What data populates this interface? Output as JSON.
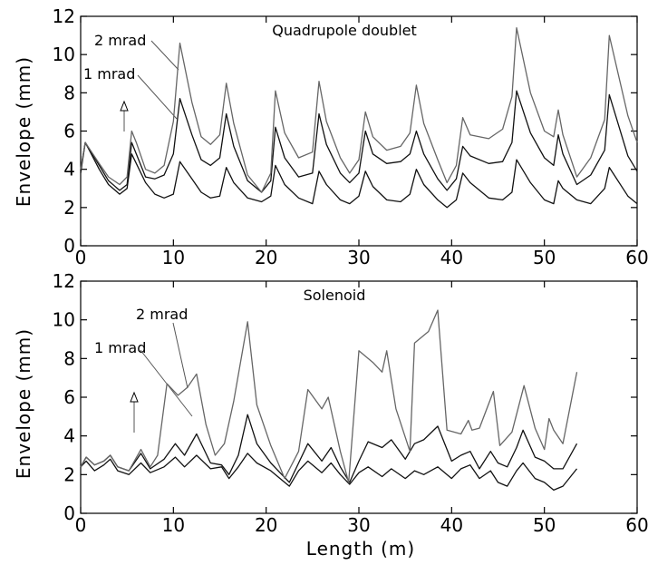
{
  "colors": {
    "dark": "#111111",
    "light": "#666666",
    "axis": "#000000"
  },
  "chart_data": [
    {
      "type": "line",
      "title": "Quadrupole doublet",
      "xlabel": "",
      "ylabel": "Envelope  (mm)",
      "xlim": [
        0,
        60
      ],
      "ylim": [
        0,
        12
      ],
      "xticks": [
        0,
        10,
        20,
        30,
        40,
        50,
        60
      ],
      "yticks": [
        0,
        2,
        4,
        6,
        8,
        10,
        12
      ],
      "grid": false,
      "annotations": [
        {
          "text": "2 mrad",
          "series": 2
        },
        {
          "text": "1 mrad",
          "series": 1
        }
      ],
      "series": [
        {
          "color": "#111111",
          "x": [
            0,
            0.5,
            2,
            3,
            4.2,
            5,
            5.5,
            6,
            7,
            8,
            9,
            10,
            10.7,
            12,
            13,
            14,
            15,
            15.7,
            16.5,
            18,
            19.5,
            20.5,
            21,
            22,
            23.5,
            25,
            25.7,
            26.5,
            28,
            29,
            30,
            30.7,
            31.5,
            33,
            34.5,
            35.5,
            36.2,
            37,
            38.5,
            39.5,
            40.5,
            41.2,
            42,
            44,
            45.5,
            46.5,
            47,
            48.5,
            50,
            51,
            51.5,
            52,
            53.5,
            55,
            56.5,
            57,
            59,
            60
          ],
          "y": [
            3.8,
            5.4,
            4.0,
            3.2,
            2.7,
            3.0,
            4.8,
            4.3,
            3.3,
            2.7,
            2.5,
            2.7,
            4.4,
            3.5,
            2.8,
            2.5,
            2.6,
            4.1,
            3.3,
            2.5,
            2.3,
            2.6,
            4.2,
            3.2,
            2.5,
            2.2,
            3.9,
            3.2,
            2.4,
            2.2,
            2.6,
            3.9,
            3.1,
            2.4,
            2.3,
            2.7,
            4.0,
            3.2,
            2.4,
            2.0,
            2.4,
            3.8,
            3.3,
            2.5,
            2.4,
            2.8,
            4.5,
            3.3,
            2.4,
            2.2,
            3.4,
            3.0,
            2.4,
            2.2,
            3.0,
            4.1,
            2.6,
            2.2
          ]
        },
        {
          "color": "#111111",
          "x": [
            0,
            0.5,
            2,
            3,
            4.2,
            5,
            5.5,
            6,
            7,
            8,
            9,
            10,
            10.7,
            12,
            13,
            14,
            15,
            15.7,
            16.5,
            18,
            19.5,
            20.5,
            21,
            22,
            23.5,
            25,
            25.7,
            26.5,
            28,
            29,
            30,
            30.7,
            31.5,
            33,
            34.5,
            35.5,
            36.2,
            37,
            38.5,
            39.5,
            40.5,
            41.2,
            42,
            44,
            45.5,
            46.5,
            47,
            48.5,
            50,
            51,
            51.5,
            52,
            53.5,
            55,
            56.5,
            57,
            59,
            60
          ],
          "y": [
            4.0,
            5.4,
            4.2,
            3.4,
            2.9,
            3.2,
            5.4,
            4.8,
            3.6,
            3.5,
            3.7,
            4.8,
            7.7,
            5.8,
            4.5,
            4.2,
            4.6,
            6.9,
            5.2,
            3.4,
            2.8,
            3.4,
            6.2,
            4.6,
            3.6,
            3.8,
            6.9,
            5.3,
            3.8,
            3.3,
            3.8,
            6.0,
            4.8,
            4.3,
            4.4,
            4.8,
            6.0,
            4.8,
            3.5,
            2.9,
            3.5,
            5.2,
            4.7,
            4.3,
            4.4,
            5.4,
            8.1,
            5.9,
            4.6,
            4.2,
            5.8,
            4.8,
            3.2,
            3.7,
            5.0,
            7.9,
            4.7,
            3.9
          ]
        },
        {
          "color": "#666666",
          "x": [
            0,
            0.5,
            2,
            3,
            4.2,
            5,
            5.5,
            6,
            7,
            8,
            9,
            10,
            10.7,
            12,
            13,
            14,
            15,
            15.7,
            16.5,
            18,
            19.5,
            20.5,
            21,
            22,
            23.5,
            25,
            25.7,
            26.5,
            28,
            29,
            30,
            30.7,
            31.5,
            33,
            34.5,
            35.5,
            36.2,
            37,
            38.5,
            39.5,
            40.5,
            41.2,
            42,
            44,
            45.5,
            46.5,
            47,
            48.5,
            50,
            51,
            51.5,
            52,
            53.5,
            55,
            56.5,
            57,
            59,
            60
          ],
          "y": [
            4.0,
            5.4,
            4.3,
            3.6,
            3.2,
            3.6,
            6.0,
            5.4,
            4.0,
            3.8,
            4.2,
            6.5,
            10.6,
            7.5,
            5.7,
            5.3,
            5.8,
            8.5,
            6.4,
            3.7,
            2.8,
            3.8,
            8.1,
            5.9,
            4.6,
            4.9,
            8.6,
            6.5,
            4.6,
            3.8,
            4.5,
            7.0,
            5.7,
            5.0,
            5.2,
            5.9,
            8.4,
            6.4,
            4.5,
            3.3,
            4.2,
            6.7,
            5.8,
            5.6,
            6.1,
            7.8,
            11.4,
            8.0,
            6.0,
            5.7,
            7.1,
            5.8,
            3.6,
            4.6,
            6.6,
            11.0,
            6.8,
            5.4
          ]
        }
      ]
    },
    {
      "type": "line",
      "title": "Solenoid",
      "xlabel": "Length  (m)",
      "ylabel": "Envelope  (mm)",
      "xlim": [
        0,
        60
      ],
      "ylim": [
        0,
        12
      ],
      "xticks": [
        0,
        10,
        20,
        30,
        40,
        50,
        60
      ],
      "yticks": [
        0,
        2,
        4,
        6,
        8,
        10,
        12
      ],
      "grid": false,
      "annotations": [
        {
          "text": "2 mrad",
          "series": 2
        },
        {
          "text": "1 mrad",
          "series": 1
        }
      ],
      "series": [
        {
          "color": "#111111",
          "x": [
            0,
            0.6,
            1.5,
            2.5,
            3.2,
            4,
            5.2,
            6.5,
            7.5,
            9,
            10.2,
            11.2,
            12.5,
            14,
            15.2,
            16,
            17,
            18,
            19,
            20.5,
            21.5,
            22.5,
            23.5,
            24.5,
            26,
            27,
            28,
            29,
            30,
            31,
            32.5,
            33.5,
            35,
            36,
            37,
            38.5,
            40,
            41,
            42,
            43,
            44.2,
            45,
            46,
            47,
            47.7,
            49,
            50,
            51,
            52,
            53.5
          ],
          "y": [
            2.4,
            2.7,
            2.2,
            2.5,
            2.8,
            2.2,
            2.0,
            2.6,
            2.1,
            2.4,
            2.9,
            2.4,
            3.0,
            2.3,
            2.4,
            1.8,
            2.4,
            3.1,
            2.6,
            2.2,
            1.8,
            1.4,
            2.2,
            2.7,
            2.1,
            2.6,
            2.0,
            1.5,
            2.1,
            2.4,
            1.9,
            2.3,
            1.8,
            2.2,
            2.0,
            2.4,
            1.8,
            2.3,
            2.5,
            1.8,
            2.2,
            1.6,
            1.4,
            2.2,
            2.6,
            1.8,
            1.6,
            1.2,
            1.4,
            2.3
          ]
        },
        {
          "color": "#111111",
          "x": [
            0,
            0.6,
            1.5,
            2.5,
            3.2,
            4,
            5.2,
            6.5,
            7.5,
            9,
            10.2,
            11.2,
            12.5,
            14,
            15.2,
            16,
            17,
            18,
            19,
            20.5,
            21.5,
            22.5,
            23.5,
            24.5,
            26,
            27,
            28,
            29,
            30,
            31,
            32.5,
            33.5,
            35,
            36,
            37,
            38.5,
            40,
            41,
            42,
            43,
            44.2,
            45,
            46,
            47,
            47.7,
            49,
            50,
            51,
            52,
            53.5
          ],
          "y": [
            2.4,
            2.9,
            2.5,
            2.7,
            3.0,
            2.4,
            2.2,
            3.1,
            2.3,
            2.8,
            3.6,
            3.0,
            4.1,
            2.6,
            2.5,
            2.0,
            3.0,
            5.1,
            3.6,
            2.6,
            2.1,
            1.6,
            2.6,
            3.6,
            2.7,
            3.4,
            2.4,
            1.6,
            2.7,
            3.7,
            3.4,
            3.8,
            2.8,
            3.6,
            3.8,
            4.5,
            2.7,
            3.0,
            3.2,
            2.3,
            3.2,
            2.6,
            2.4,
            3.4,
            4.3,
            2.9,
            2.7,
            2.3,
            2.3,
            3.6
          ]
        },
        {
          "color": "#666666",
          "x": [
            0,
            0.6,
            1.5,
            2.5,
            3.2,
            4,
            5.2,
            6.5,
            7.5,
            8.3,
            9.3,
            10.5,
            11.5,
            12.5,
            13.5,
            14.5,
            15.5,
            16.5,
            18,
            19,
            20.5,
            22,
            23.5,
            24.5,
            26,
            26.7,
            28,
            28.9,
            30,
            31.5,
            32.5,
            33,
            34,
            35.5,
            36,
            37.5,
            38.5,
            39.5,
            41,
            41.8,
            42.2,
            43,
            44.5,
            45.2,
            46.5,
            47.8,
            49,
            50,
            50.5,
            51,
            52,
            53.5
          ],
          "y": [
            2.4,
            2.9,
            2.5,
            2.7,
            3.0,
            2.4,
            2.2,
            3.3,
            2.4,
            3.0,
            6.7,
            6.1,
            6.5,
            7.2,
            4.6,
            3.0,
            3.6,
            5.8,
            9.9,
            5.6,
            3.5,
            1.8,
            3.2,
            6.4,
            5.4,
            6.0,
            3.2,
            1.6,
            8.4,
            7.8,
            7.3,
            8.4,
            5.4,
            3.2,
            8.8,
            9.4,
            10.5,
            4.3,
            4.1,
            4.8,
            4.3,
            4.4,
            6.3,
            3.5,
            4.2,
            6.6,
            4.4,
            3.3,
            4.9,
            4.3,
            3.6,
            7.3
          ]
        }
      ]
    }
  ]
}
